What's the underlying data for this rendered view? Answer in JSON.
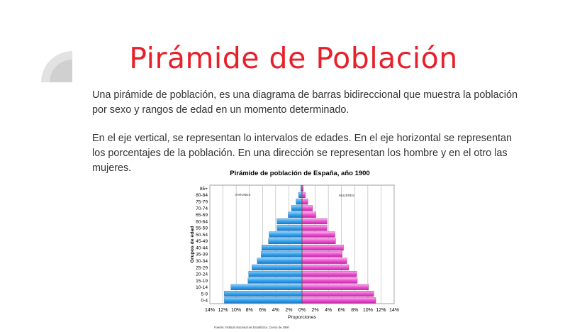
{
  "page": {
    "title": "Pirámide de Población",
    "paragraph_1": "Una pirámide de población, es una diagrama de barras bidireccional que muestra la población por sexo y rangos de edad en un momento determinado.",
    "paragraph_2": "En el eje vertical, se representan lo intervalos de edades. En el eje horizontal se representan los porcentajes de la población. En una dirección se representan los hombre y en el otro las mujeres."
  },
  "colors": {
    "title": "#e8202a",
    "male_bar": "#3aa6ee",
    "female_bar": "#ee58d2"
  },
  "chart_data": {
    "type": "bar",
    "orientation": "horizontal",
    "title": "Pirámide de población de España, año 1900",
    "xlabel": "Proporciones",
    "ylabel": "Grupos de edad",
    "categories": [
      "0-4",
      "5-9",
      "10-14",
      "15-19",
      "20-24",
      "25-29",
      "30-34",
      "35-39",
      "40-44",
      "45-49",
      "50-54",
      "55-59",
      "60-64",
      "65-69",
      "70-74",
      "75-79",
      "80-84",
      "85+"
    ],
    "series": [
      {
        "name": "VARONES",
        "direction": "left",
        "values": [
          11.8,
          11.8,
          10.8,
          8.2,
          8.1,
          7.6,
          6.8,
          6.2,
          6.1,
          5.1,
          5.0,
          3.8,
          3.8,
          2.1,
          1.6,
          0.9,
          0.5,
          0.2
        ]
      },
      {
        "name": "MUJERES",
        "direction": "right",
        "values": [
          11.2,
          10.9,
          10.1,
          8.4,
          8.3,
          7.1,
          6.8,
          6.1,
          6.3,
          5.1,
          5.0,
          3.8,
          3.8,
          2.1,
          1.6,
          0.9,
          0.5,
          0.2
        ]
      }
    ],
    "x_ticks": [
      "14%",
      "12%",
      "10%",
      "8%",
      "6%",
      "4%",
      "2%",
      "0%",
      "2%",
      "4%",
      "6%",
      "8%",
      "10%",
      "12%",
      "14%"
    ],
    "xlim": [
      -14,
      14
    ],
    "grid": true,
    "source": "Fuente: Instituto Nacional de Estadística. Censo de 1900"
  }
}
